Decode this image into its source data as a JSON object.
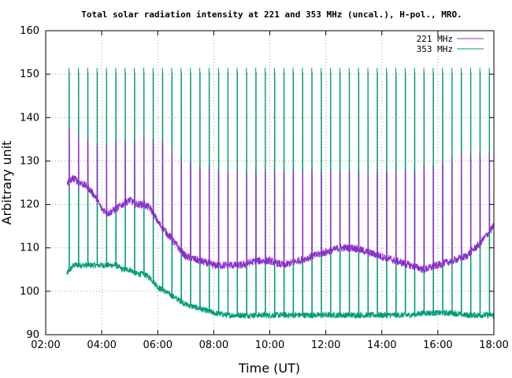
{
  "chart_data": {
    "type": "line",
    "title": "Total solar radiation intensity at 221 and 353 MHz (uncal.), H-pol., MRO.",
    "xlabel": "Time (UT)",
    "ylabel": "Arbitrary unit",
    "xlim": [
      "02:00",
      "18:00"
    ],
    "ylim": [
      90,
      160
    ],
    "xticks": [
      "02:00",
      "04:00",
      "06:00",
      "08:00",
      "10:00",
      "12:00",
      "14:00",
      "16:00",
      "18:00"
    ],
    "yticks": [
      90,
      100,
      110,
      120,
      130,
      140,
      150,
      160
    ],
    "grid": true,
    "legend_position": "top-right",
    "series": [
      {
        "name": "221 MHz",
        "color": "#8b2fc9",
        "x": [
          "02:45",
          "03:00",
          "03:15",
          "03:30",
          "03:45",
          "04:00",
          "04:15",
          "04:30",
          "04:45",
          "05:00",
          "05:15",
          "05:30",
          "05:45",
          "06:00",
          "06:15",
          "06:30",
          "06:45",
          "07:00",
          "07:30",
          "08:00",
          "08:30",
          "09:00",
          "09:30",
          "10:00",
          "10:30",
          "11:00",
          "11:30",
          "12:00",
          "12:30",
          "13:00",
          "13:30",
          "14:00",
          "14:30",
          "15:00",
          "15:30",
          "16:00",
          "16:30",
          "17:00",
          "17:30",
          "18:00"
        ],
        "values": [
          125,
          126,
          125,
          124,
          122,
          119,
          118,
          119,
          120,
          121,
          120,
          120,
          119,
          116,
          114,
          112,
          110,
          108,
          107,
          106,
          106,
          106,
          107,
          107,
          106,
          107,
          108,
          109,
          110,
          110,
          109,
          108,
          107,
          106,
          105,
          106,
          107,
          108,
          111,
          115
        ],
        "spikes": {
          "start": "02:50",
          "interval_minutes": 20,
          "peaks": [
            138,
            136,
            135,
            134,
            134,
            135,
            135,
            135,
            136,
            135,
            135,
            133,
            131,
            130,
            129,
            129,
            128,
            128,
            128,
            128,
            128,
            128,
            128,
            128,
            128,
            128,
            128,
            128,
            128,
            128,
            128,
            128,
            128,
            128,
            128,
            128,
            128,
            128,
            129,
            129,
            130,
            131,
            132,
            132
          ],
          "base": 123
        }
      },
      {
        "name": "353 MHz",
        "color": "#009b77",
        "x": [
          "02:45",
          "03:00",
          "03:15",
          "03:30",
          "03:45",
          "04:00",
          "04:15",
          "04:30",
          "04:45",
          "05:00",
          "05:15",
          "05:30",
          "05:45",
          "06:00",
          "06:15",
          "06:30",
          "06:45",
          "07:00",
          "07:30",
          "08:00",
          "08:30",
          "09:00",
          "09:30",
          "10:00",
          "10:30",
          "11:00",
          "11:30",
          "12:00",
          "12:30",
          "13:00",
          "13:30",
          "14:00",
          "14:30",
          "15:00",
          "15:30",
          "16:00",
          "16:30",
          "17:00",
          "17:30",
          "18:00"
        ],
        "values": [
          104,
          106,
          106,
          106,
          106,
          106,
          106,
          106,
          105,
          105,
          104,
          104,
          103,
          101,
          100,
          99,
          98,
          97,
          96,
          95,
          94.5,
          94.5,
          94.5,
          94.5,
          94.5,
          94.5,
          94.5,
          94.5,
          94.5,
          94.5,
          94.5,
          94.5,
          94.5,
          94.5,
          95,
          95,
          95,
          94.5,
          94.5,
          94.5
        ],
        "spikes": {
          "start": "02:50",
          "interval_minutes": 20,
          "peak": 151.5,
          "base": 128
        }
      }
    ]
  }
}
